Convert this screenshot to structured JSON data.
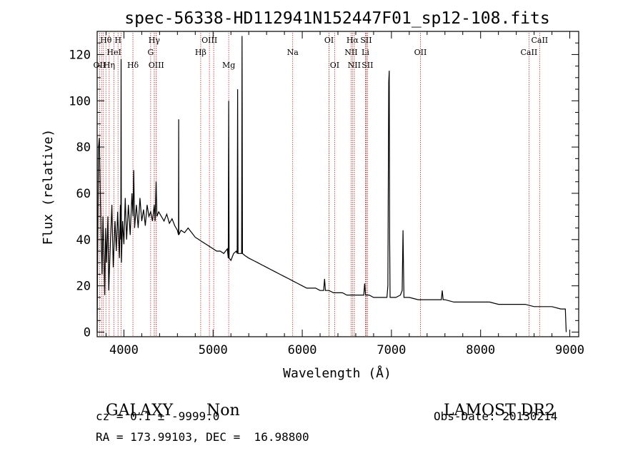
{
  "chart_data": {
    "type": "line",
    "title": "spec-56338-HD112941N152447F01_sp12-108.fits",
    "xlabel": "Wavelength (Å)",
    "ylabel": "Flux (relative)",
    "xlim": [
      3700,
      9100
    ],
    "ylim": [
      -2,
      130
    ],
    "xticks": [
      "4000",
      "5000",
      "6000",
      "7000",
      "8000",
      "9000"
    ],
    "yticks": [
      "0",
      "20",
      "40",
      "60",
      "80",
      "100",
      "120"
    ],
    "series": [
      {
        "values": [
          [
            3700,
            0
          ],
          [
            3705,
            30
          ],
          [
            3715,
            80
          ],
          [
            3725,
            84
          ],
          [
            3735,
            60
          ],
          [
            3745,
            40
          ],
          [
            3755,
            25
          ],
          [
            3765,
            50
          ],
          [
            3775,
            35
          ],
          [
            3785,
            16
          ],
          [
            3795,
            45
          ],
          [
            3805,
            30
          ],
          [
            3820,
            50
          ],
          [
            3830,
            18
          ],
          [
            3850,
            40
          ],
          [
            3865,
            55
          ],
          [
            3880,
            28
          ],
          [
            3900,
            48
          ],
          [
            3915,
            35
          ],
          [
            3930,
            52
          ],
          [
            3950,
            32
          ],
          [
            3960,
            55
          ],
          [
            3965,
            40
          ],
          [
            3968,
            118
          ],
          [
            3972,
            30
          ],
          [
            3985,
            48
          ],
          [
            4000,
            38
          ],
          [
            4015,
            58
          ],
          [
            4030,
            40
          ],
          [
            4050,
            55
          ],
          [
            4070,
            42
          ],
          [
            4090,
            60
          ],
          [
            4101,
            50
          ],
          [
            4110,
            70
          ],
          [
            4120,
            45
          ],
          [
            4140,
            55
          ],
          [
            4160,
            45
          ],
          [
            4180,
            58
          ],
          [
            4200,
            48
          ],
          [
            4220,
            53
          ],
          [
            4240,
            46
          ],
          [
            4260,
            55
          ],
          [
            4280,
            50
          ],
          [
            4300,
            52
          ],
          [
            4320,
            48
          ],
          [
            4340,
            55
          ],
          [
            4350,
            48
          ],
          [
            4361,
            65
          ],
          [
            4370,
            50
          ],
          [
            4390,
            52
          ],
          [
            4420,
            50
          ],
          [
            4450,
            48
          ],
          [
            4480,
            51
          ],
          [
            4510,
            47
          ],
          [
            4540,
            49
          ],
          [
            4570,
            46
          ],
          [
            4600,
            44
          ],
          [
            4612,
            42
          ],
          [
            4614,
            92
          ],
          [
            4616,
            42
          ],
          [
            4640,
            44
          ],
          [
            4680,
            43
          ],
          [
            4720,
            45
          ],
          [
            4760,
            43
          ],
          [
            4800,
            41
          ],
          [
            4840,
            40
          ],
          [
            4880,
            39
          ],
          [
            4920,
            38
          ],
          [
            4960,
            37
          ],
          [
            5000,
            36
          ],
          [
            5040,
            35
          ],
          [
            5080,
            35
          ],
          [
            5120,
            34
          ],
          [
            5160,
            36
          ],
          [
            5170,
            32
          ],
          [
            5175,
            100
          ],
          [
            5180,
            32
          ],
          [
            5200,
            31
          ],
          [
            5230,
            34
          ],
          [
            5260,
            35
          ],
          [
            5270,
            34
          ],
          [
            5275,
            105
          ],
          [
            5280,
            34
          ],
          [
            5300,
            34
          ],
          [
            5320,
            34
          ],
          [
            5325,
            128
          ],
          [
            5330,
            34
          ],
          [
            5360,
            33
          ],
          [
            5400,
            32
          ],
          [
            5450,
            31
          ],
          [
            5500,
            30
          ],
          [
            5550,
            29
          ],
          [
            5600,
            28
          ],
          [
            5650,
            27
          ],
          [
            5700,
            26
          ],
          [
            5750,
            25
          ],
          [
            5800,
            24
          ],
          [
            5850,
            23
          ],
          [
            5900,
            22
          ],
          [
            5950,
            21
          ],
          [
            6000,
            20
          ],
          [
            6050,
            19
          ],
          [
            6100,
            19
          ],
          [
            6150,
            19
          ],
          [
            6200,
            18
          ],
          [
            6240,
            18
          ],
          [
            6250,
            23
          ],
          [
            6260,
            18
          ],
          [
            6300,
            18
          ],
          [
            6350,
            17
          ],
          [
            6400,
            17
          ],
          [
            6450,
            17
          ],
          [
            6500,
            16
          ],
          [
            6550,
            16
          ],
          [
            6600,
            16
          ],
          [
            6650,
            16
          ],
          [
            6690,
            16
          ],
          [
            6700,
            21
          ],
          [
            6710,
            16
          ],
          [
            6750,
            16
          ],
          [
            6800,
            15
          ],
          [
            6850,
            15
          ],
          [
            6900,
            15
          ],
          [
            6950,
            15
          ],
          [
            6960,
            20
          ],
          [
            6970,
            108
          ],
          [
            6975,
            113
          ],
          [
            6980,
            40
          ],
          [
            6985,
            15
          ],
          [
            7050,
            15
          ],
          [
            7100,
            16
          ],
          [
            7120,
            18
          ],
          [
            7130,
            44
          ],
          [
            7135,
            30
          ],
          [
            7140,
            15
          ],
          [
            7200,
            15
          ],
          [
            7300,
            14
          ],
          [
            7400,
            14
          ],
          [
            7500,
            14
          ],
          [
            7560,
            14
          ],
          [
            7570,
            18
          ],
          [
            7580,
            14
          ],
          [
            7600,
            14
          ],
          [
            7700,
            13
          ],
          [
            7800,
            13
          ],
          [
            7900,
            13
          ],
          [
            8000,
            13
          ],
          [
            8100,
            13
          ],
          [
            8200,
            12
          ],
          [
            8300,
            12
          ],
          [
            8400,
            12
          ],
          [
            8500,
            12
          ],
          [
            8600,
            11
          ],
          [
            8700,
            11
          ],
          [
            8800,
            11
          ],
          [
            8900,
            10
          ],
          [
            8950,
            10
          ],
          [
            8960,
            0
          ]
        ]
      }
    ],
    "lines": [
      {
        "label": "Hθ",
        "x": 3798,
        "row": 0
      },
      {
        "label": "H",
        "x": 3934,
        "row": 0
      },
      {
        "label": "Hγ",
        "x": 4340,
        "row": 0
      },
      {
        "label": "OIII",
        "x": 4959,
        "row": 0
      },
      {
        "label": "OI",
        "x": 6300,
        "row": 0
      },
      {
        "label": "Hα",
        "x": 6563,
        "row": 0
      },
      {
        "label": "SII",
        "x": 6716,
        "row": 0
      },
      {
        "label": "CaII",
        "x": 8662,
        "row": 0
      },
      {
        "label": "HeI",
        "x": 3889,
        "row": 1
      },
      {
        "label": "G",
        "x": 4300,
        "row": 1
      },
      {
        "label": "Hβ",
        "x": 4861,
        "row": 1
      },
      {
        "label": "Na",
        "x": 5893,
        "row": 1
      },
      {
        "label": "NII",
        "x": 6548,
        "row": 1
      },
      {
        "label": "Li",
        "x": 6708,
        "row": 1
      },
      {
        "label": "OII",
        "x": 7325,
        "row": 1
      },
      {
        "label": "CaII",
        "x": 8542,
        "row": 1
      },
      {
        "label": "OII",
        "x": 3727,
        "row": 2
      },
      {
        "label": "Hη",
        "x": 3835,
        "row": 2
      },
      {
        "label": "Hδ",
        "x": 4101,
        "row": 2
      },
      {
        "label": "OIII",
        "x": 4363,
        "row": 2
      },
      {
        "label": "Mg",
        "x": 5175,
        "row": 2
      },
      {
        "label": "OI",
        "x": 6363,
        "row": 2
      },
      {
        "label": "NII",
        "x": 6583,
        "row": 2
      },
      {
        "label": "SII",
        "x": 6731,
        "row": 2
      }
    ],
    "extra_lines": [
      3750,
      3770,
      3968,
      4340,
      4363,
      5007,
      6300,
      6583,
      6716,
      6731
    ]
  },
  "info": {
    "class": "GALAXY",
    "subclass": "Non",
    "survey": "LAMOST DR2",
    "cz": "cz = 0.1 ± -9999.0",
    "obs_date": "Obs-Date: 20130214",
    "coords": "RA = 173.99103, DEC =  16.98800"
  }
}
